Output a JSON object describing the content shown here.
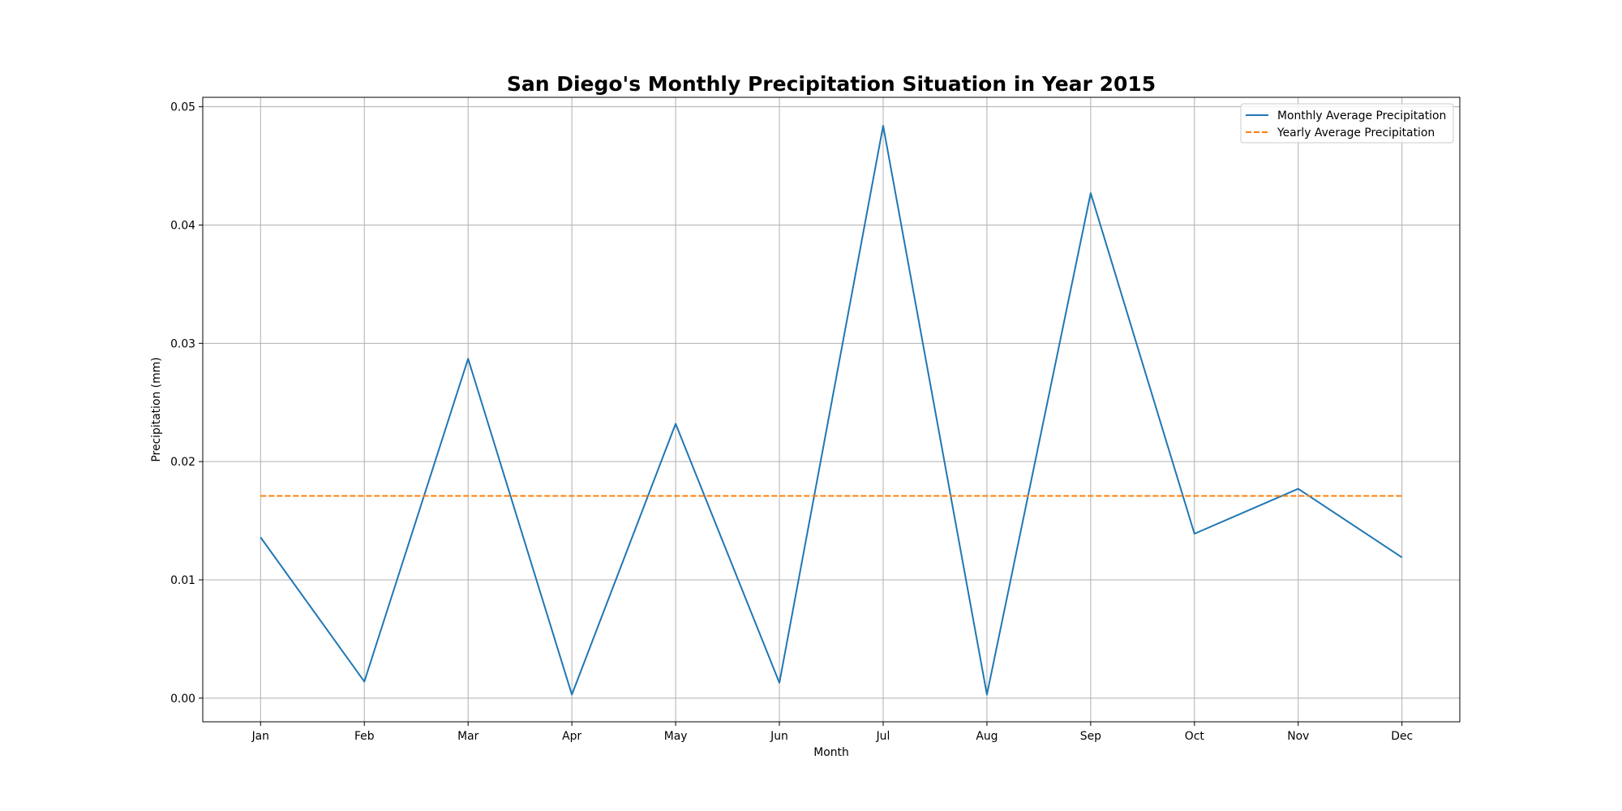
{
  "chart_data": {
    "type": "line",
    "title": "San Diego's Monthly Precipitation Situation in Year 2015",
    "xlabel": "Month",
    "ylabel": "Precipitation (mm)",
    "categories": [
      "Jan",
      "Feb",
      "Mar",
      "Apr",
      "May",
      "Jun",
      "Jul",
      "Aug",
      "Sep",
      "Oct",
      "Nov",
      "Dec"
    ],
    "ylim": [
      -0.002,
      0.0508
    ],
    "yticks": [
      0.0,
      0.01,
      0.02,
      0.03,
      0.04,
      0.05
    ],
    "ytick_labels": [
      "0.00",
      "0.01",
      "0.02",
      "0.03",
      "0.04",
      "0.05"
    ],
    "grid": true,
    "legend_position": "top-right",
    "series": [
      {
        "name": "Monthly Average Precipitation",
        "style": "solid",
        "color": "#1f77b4",
        "values": [
          0.0136,
          0.0014,
          0.0287,
          0.0003,
          0.0232,
          0.0013,
          0.0484,
          0.0003,
          0.0427,
          0.0139,
          0.0177,
          0.0119
        ]
      },
      {
        "name": "Yearly Average Precipitation",
        "style": "dashed",
        "color": "#ff7f0e",
        "values": [
          0.0171,
          0.0171,
          0.0171,
          0.0171,
          0.0171,
          0.0171,
          0.0171,
          0.0171,
          0.0171,
          0.0171,
          0.0171,
          0.0171
        ]
      }
    ]
  }
}
